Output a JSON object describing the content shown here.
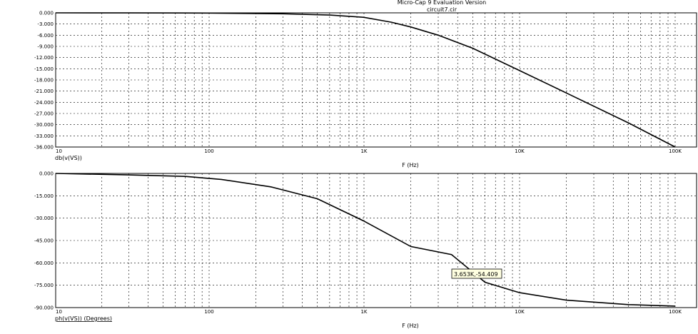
{
  "header": {
    "title": "Micro-Cap 9 Evaluation Version",
    "filename": "circuit7.cir"
  },
  "chart_data": [
    {
      "type": "line",
      "name": "magnitude-plot",
      "xscale": "log",
      "xlim": [
        10,
        100000
      ],
      "ylim": [
        -36,
        0
      ],
      "yticks": [
        "0.000",
        "-3.000",
        "-6.000",
        "-9.000",
        "-12.000",
        "-15.000",
        "-18.000",
        "-21.000",
        "-24.000",
        "-27.000",
        "-30.000",
        "-33.000",
        "-36.000"
      ],
      "yticks_values": [
        0,
        -3,
        -6,
        -9,
        -12,
        -15,
        -18,
        -21,
        -24,
        -27,
        -30,
        -33,
        -36
      ],
      "xticks": [
        "10",
        "100",
        "1K",
        "10K",
        "100K"
      ],
      "xticks_values": [
        10,
        100,
        1000,
        10000,
        100000
      ],
      "xlabel": "F (Hz)",
      "ylabel": "db(v(VS))",
      "grid": true,
      "series": [
        {
          "x": [
            10,
            30,
            100,
            300,
            600,
            1000,
            1500,
            2000,
            3000,
            5000,
            10000,
            20000,
            50000,
            100000
          ],
          "y": [
            0,
            -0.01,
            -0.05,
            -0.25,
            -0.6,
            -1.2,
            -2.5,
            -3.8,
            -6.0,
            -9.5,
            -15.5,
            -21.5,
            -29.5,
            -36.0
          ]
        }
      ]
    },
    {
      "type": "line",
      "name": "phase-plot",
      "xscale": "log",
      "xlim": [
        10,
        100000
      ],
      "ylim": [
        -90,
        0
      ],
      "yticks": [
        "0.000",
        "-15.000",
        "-30.000",
        "-45.000",
        "-60.000",
        "-75.000",
        "-90.000"
      ],
      "yticks_values": [
        0,
        -15,
        -30,
        -45,
        -60,
        -75,
        -90
      ],
      "xticks": [
        "10",
        "100",
        "1K",
        "10K",
        "100K"
      ],
      "xticks_values": [
        10,
        100,
        1000,
        10000,
        100000
      ],
      "xlabel": "F (Hz)",
      "ylabel": "ph(v(VS)) (Degrees)",
      "grid": true,
      "series": [
        {
          "x": [
            10,
            30,
            70,
            120,
            250,
            500,
            1000,
            2000,
            3653,
            6000,
            10000,
            20000,
            50000,
            100000
          ],
          "y": [
            0,
            -1,
            -2,
            -4,
            -9,
            -17,
            -32,
            -49,
            -54.409,
            -73,
            -80,
            -85,
            -88,
            -89
          ]
        }
      ],
      "annotation": {
        "text": "3.653K,-54.409",
        "x": 3653,
        "y": -54.409
      }
    }
  ]
}
